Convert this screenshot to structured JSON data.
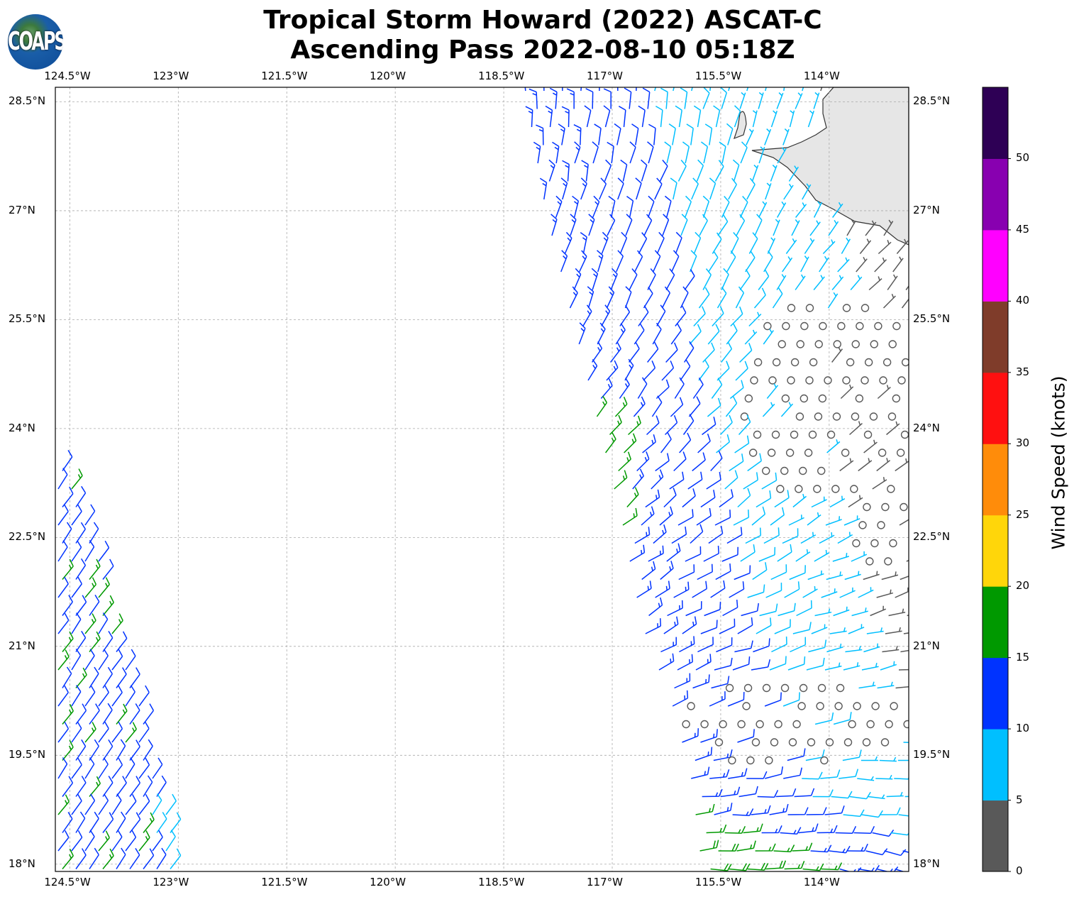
{
  "title": {
    "line1": "Tropical Storm Howard (2022) ASCAT-C",
    "line2": "Ascending Pass 2022-08-10 05:18Z"
  },
  "logo": {
    "text": "COAPS"
  },
  "map": {
    "lon_ticks": [
      "124.5°W",
      "123°W",
      "121.5°W",
      "120°W",
      "118.5°W",
      "117°W",
      "115.5°W",
      "114°W"
    ],
    "lat_ticks": [
      "28.5°N",
      "27°N",
      "25.5°N",
      "24°N",
      "22.5°N",
      "21°N",
      "19.5°N",
      "18°N"
    ],
    "lon_range": [
      -124.7,
      -112.9
    ],
    "lat_range": [
      17.9,
      28.7
    ],
    "grid": true,
    "land_color": "#e6e6e6",
    "coastline_color": "#333333"
  },
  "colorbar": {
    "label": "Wind Speed (knots)",
    "ticks": [
      "0",
      "5",
      "10",
      "15",
      "20",
      "25",
      "30",
      "35",
      "40",
      "45",
      "50"
    ],
    "bins": [
      {
        "min": 0,
        "max": 5,
        "color": "#595959"
      },
      {
        "min": 5,
        "max": 10,
        "color": "#00bfff"
      },
      {
        "min": 10,
        "max": 15,
        "color": "#0033ff"
      },
      {
        "min": 15,
        "max": 20,
        "color": "#009900"
      },
      {
        "min": 20,
        "max": 25,
        "color": "#ffd60a"
      },
      {
        "min": 25,
        "max": 30,
        "color": "#ff8c0a"
      },
      {
        "min": 30,
        "max": 35,
        "color": "#ff1010"
      },
      {
        "min": 35,
        "max": 40,
        "color": "#7f3c2a"
      },
      {
        "min": 40,
        "max": 45,
        "color": "#ff00ff"
      },
      {
        "min": 45,
        "max": 50,
        "color": "#8800b0"
      },
      {
        "min": 50,
        "max": 55,
        "color": "#2e0055"
      }
    ]
  }
}
